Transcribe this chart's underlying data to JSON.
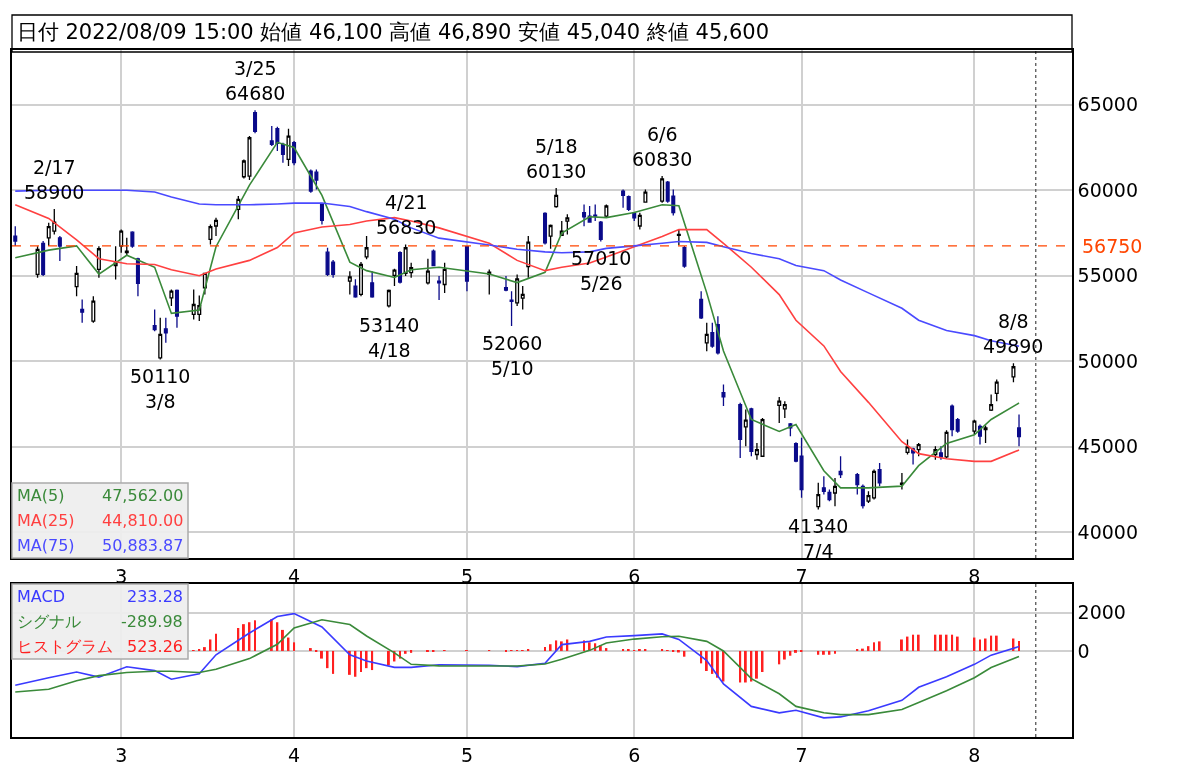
{
  "chart_data": [
    {
      "type": "candlestick",
      "title": "日付 2022/08/09 15:00 始値 46,100 高値 46,890 安値 45,040 終値 45,600",
      "x": [
        "2022-02-10",
        "2022-02-14",
        "2022-02-15",
        "2022-02-16",
        "2022-02-17",
        "2022-02-18",
        "2022-02-21",
        "2022-02-22",
        "2022-02-24",
        "2022-02-25",
        "2022-02-28",
        "2022-03-01",
        "2022-03-02",
        "2022-03-03",
        "2022-03-04",
        "2022-03-07",
        "2022-03-08",
        "2022-03-09",
        "2022-03-10",
        "2022-03-11",
        "2022-03-14",
        "2022-03-15",
        "2022-03-16",
        "2022-03-17",
        "2022-03-18",
        "2022-03-22",
        "2022-03-23",
        "2022-03-24",
        "2022-03-25",
        "2022-03-28",
        "2022-03-29",
        "2022-03-30",
        "2022-03-31",
        "2022-04-01",
        "2022-04-04",
        "2022-04-05",
        "2022-04-06",
        "2022-04-07",
        "2022-04-08",
        "2022-04-11",
        "2022-04-12",
        "2022-04-13",
        "2022-04-14",
        "2022-04-15",
        "2022-04-18",
        "2022-04-19",
        "2022-04-20",
        "2022-04-21",
        "2022-04-22",
        "2022-04-25",
        "2022-04-26",
        "2022-04-27",
        "2022-04-28",
        "2022-05-02",
        "2022-05-06",
        "2022-05-09",
        "2022-05-10",
        "2022-05-11",
        "2022-05-12",
        "2022-05-13",
        "2022-05-16",
        "2022-05-17",
        "2022-05-18",
        "2022-05-19",
        "2022-05-20",
        "2022-05-23",
        "2022-05-24",
        "2022-05-25",
        "2022-05-26",
        "2022-05-27",
        "2022-05-30",
        "2022-05-31",
        "2022-06-01",
        "2022-06-02",
        "2022-06-03",
        "2022-06-06",
        "2022-06-07",
        "2022-06-08",
        "2022-06-09",
        "2022-06-10",
        "2022-06-13",
        "2022-06-14",
        "2022-06-15",
        "2022-06-16",
        "2022-06-17",
        "2022-06-20",
        "2022-06-21",
        "2022-06-22",
        "2022-06-23",
        "2022-06-24",
        "2022-06-27",
        "2022-06-28",
        "2022-06-29",
        "2022-06-30",
        "2022-07-01",
        "2022-07-04",
        "2022-07-05",
        "2022-07-06",
        "2022-07-07",
        "2022-07-08",
        "2022-07-11",
        "2022-07-12",
        "2022-07-13",
        "2022-07-14",
        "2022-07-15",
        "2022-07-19",
        "2022-07-20",
        "2022-07-21",
        "2022-07-22",
        "2022-07-25",
        "2022-07-26",
        "2022-07-27",
        "2022-07-28",
        "2022-07-29",
        "2022-08-01",
        "2022-08-02",
        "2022-08-03",
        "2022-08-04",
        "2022-08-05",
        "2022-08-08",
        "2022-08-09"
      ],
      "ohlc": [
        [
          57320,
          57900,
          56740,
          57030
        ],
        [
          55080,
          56730,
          54880,
          56540
        ],
        [
          56890,
          57030,
          54980,
          55080
        ],
        [
          57220,
          58100,
          56740,
          57870
        ],
        [
          57610,
          58900,
          57420,
          58140
        ],
        [
          57220,
          57320,
          55860,
          56740
        ],
        [
          54360,
          55570,
          53810,
          55140
        ],
        [
          53030,
          53620,
          52250,
          52870
        ],
        [
          52350,
          53810,
          52250,
          53520
        ],
        [
          55370,
          56730,
          54880,
          56580
        ],
        [
          55600,
          56730,
          54780,
          55760
        ],
        [
          56740,
          57710,
          56350,
          57610
        ],
        [
          56350,
          57220,
          56150,
          56440
        ],
        [
          57550,
          57610,
          56640,
          56740
        ],
        [
          55990,
          56050,
          53810,
          54550
        ],
        [
          52090,
          53030,
          51760,
          51860
        ],
        [
          50200,
          52540,
          50110,
          51570
        ],
        [
          51900,
          52540,
          51080,
          51670
        ],
        [
          53710,
          54200,
          53230,
          54100
        ],
        [
          54140,
          54200,
          51960,
          52640
        ],
        [
          52740,
          54200,
          52450,
          53320
        ],
        [
          52740,
          53850,
          52350,
          53260
        ],
        [
          54300,
          55180,
          53910,
          55140
        ],
        [
          57130,
          58000,
          56830,
          57870
        ],
        [
          57910,
          58390,
          57320,
          58240
        ],
        [
          58880,
          59660,
          58300,
          59470
        ],
        [
          60790,
          61800,
          60680,
          61710
        ],
        [
          60830,
          63170,
          60600,
          63070
        ],
        [
          64540,
          64680,
          63340,
          63440
        ],
        [
          62880,
          63750,
          62590,
          62680
        ],
        [
          63600,
          63720,
          62290,
          62740
        ],
        [
          62680,
          62780,
          61610,
          62100
        ],
        [
          61810,
          63600,
          61420,
          63170
        ],
        [
          62780,
          62880,
          61460,
          61610
        ],
        [
          61120,
          61220,
          59860,
          59950
        ],
        [
          61060,
          61220,
          60050,
          60600
        ],
        [
          59170,
          59230,
          58000,
          58240
        ],
        [
          56380,
          56640,
          54980,
          55080
        ],
        [
          55800,
          55920,
          54880,
          55080
        ],
        [
          54690,
          55270,
          53910,
          54940
        ],
        [
          54400,
          54790,
          53710,
          53770
        ],
        [
          53910,
          55800,
          53810,
          55660
        ],
        [
          56110,
          57320,
          55960,
          56640
        ],
        [
          54590,
          55270,
          53710,
          53770
        ],
        [
          53240,
          54200,
          53140,
          54140
        ],
        [
          55020,
          55410,
          54400,
          55330
        ],
        [
          56350,
          56440,
          54550,
          54630
        ],
        [
          55140,
          56830,
          54980,
          56640
        ],
        [
          55180,
          55760,
          54880,
          55470
        ],
        [
          54590,
          55990,
          54490,
          55270
        ],
        [
          56440,
          56540,
          55560,
          55600
        ],
        [
          54690,
          54980,
          53590,
          54590
        ],
        [
          54490,
          55760,
          53990,
          55370
        ],
        [
          56700,
          56740,
          54100,
          54690
        ],
        [
          55080,
          55370,
          53910,
          55210
        ],
        [
          54300,
          54980,
          54100,
          54160
        ],
        [
          53580,
          54100,
          52060,
          53500
        ],
        [
          53420,
          55080,
          53230,
          54820
        ],
        [
          53690,
          54400,
          53030,
          53910
        ],
        [
          55540,
          57320,
          54880,
          56970
        ],
        [
          58650,
          58720,
          56830,
          56930
        ],
        [
          57320,
          58000,
          56580,
          57940
        ],
        [
          59040,
          60130,
          58980,
          59700
        ],
        [
          57370,
          58200,
          57320,
          57610
        ],
        [
          58200,
          58590,
          57420,
          58390
        ],
        [
          58690,
          59170,
          57900,
          58450
        ],
        [
          58490,
          59080,
          58100,
          58140
        ],
        [
          58550,
          59170,
          58200,
          58490
        ],
        [
          58140,
          58200,
          57010,
          57130
        ],
        [
          58490,
          59170,
          58390,
          59080
        ],
        [
          59950,
          60050,
          58980,
          59700
        ],
        [
          59620,
          59700,
          58780,
          58880
        ],
        [
          58650,
          58720,
          58200,
          58390
        ],
        [
          57910,
          58690,
          57710,
          58530
        ],
        [
          59310,
          60050,
          59270,
          59890
        ],
        [
          59370,
          60830,
          59270,
          60670
        ],
        [
          60480,
          60540,
          59270,
          59370
        ],
        [
          59660,
          60050,
          58530,
          58690
        ],
        [
          57370,
          57710,
          56780,
          57420
        ],
        [
          56640,
          56740,
          55470,
          55570
        ],
        [
          53620,
          54100,
          52480,
          52540
        ],
        [
          51080,
          52250,
          50590,
          51570
        ],
        [
          51670,
          52250,
          50790,
          50890
        ],
        [
          52150,
          52640,
          50400,
          50500
        ],
        [
          48160,
          48640,
          47380,
          47920
        ],
        [
          47470,
          47570,
          44350,
          45430
        ],
        [
          46170,
          47180,
          45040,
          46560
        ],
        [
          47220,
          47280,
          44450,
          44740
        ],
        [
          44550,
          45230,
          44250,
          44840
        ],
        [
          44450,
          46690,
          44410,
          46590
        ],
        [
          47420,
          47920,
          46400,
          47670
        ],
        [
          47220,
          47670,
          46690,
          47470
        ],
        [
          46340,
          46400,
          45620,
          46110
        ],
        [
          45190,
          45270,
          44100,
          44160
        ],
        [
          44450,
          45530,
          42020,
          42500
        ],
        [
          41500,
          42900,
          41340,
          42210
        ],
        [
          42600,
          43280,
          42210,
          42400
        ],
        [
          42340,
          42500,
          41820,
          41920
        ],
        [
          42300,
          43180,
          41530,
          42690
        ],
        [
          43570,
          44450,
          43180,
          43380
        ],
        [
          43380,
          43470,
          42210,
          42790
        ],
        [
          42690,
          42790,
          41400,
          41560
        ],
        [
          41820,
          42400,
          41720,
          42150
        ],
        [
          42010,
          43670,
          41920,
          43570
        ],
        [
          43670,
          44060,
          42690,
          42890
        ],
        [
          42810,
          43470,
          42500,
          42870
        ],
        [
          44680,
          45430,
          44550,
          45000
        ],
        [
          44880,
          44940,
          43970,
          44650
        ],
        [
          44840,
          45230,
          44450,
          45130
        ],
        [
          44550,
          45040,
          44250,
          44840
        ],
        [
          44650,
          45040,
          44250,
          44410
        ],
        [
          44410,
          45970,
          44350,
          45850
        ],
        [
          47380,
          47470,
          45620,
          46010
        ],
        [
          46590,
          46690,
          45820,
          45920
        ],
        [
          45920,
          46590,
          45720,
          46500
        ],
        [
          46200,
          46300,
          45130,
          45620
        ],
        [
          46010,
          46250,
          45230,
          46110
        ],
        [
          47140,
          48060,
          47090,
          47470
        ],
        [
          48120,
          48930,
          47670,
          48780
        ],
        [
          49090,
          49890,
          48780,
          49680
        ],
        [
          46100,
          46890,
          45040,
          45600
        ]
      ],
      "series": [
        {
          "name": "MA(5)",
          "type": "line",
          "color": "#3a8a3a",
          "x": [
            "2022-02-10",
            "2022-02-16",
            "2022-02-21",
            "2022-02-25",
            "2022-03-02",
            "2022-03-07",
            "2022-03-10",
            "2022-03-15",
            "2022-03-18",
            "2022-03-24",
            "2022-03-29",
            "2022-04-01",
            "2022-04-06",
            "2022-04-11",
            "2022-04-14",
            "2022-04-19",
            "2022-04-22",
            "2022-04-27",
            "2022-05-06",
            "2022-05-11",
            "2022-05-16",
            "2022-05-19",
            "2022-05-24",
            "2022-05-27",
            "2022-06-01",
            "2022-06-06",
            "2022-06-09",
            "2022-06-14",
            "2022-06-17",
            "2022-06-22",
            "2022-06-27",
            "2022-06-30",
            "2022-07-05",
            "2022-07-08",
            "2022-07-13",
            "2022-07-19",
            "2022-07-22",
            "2022-07-27",
            "2022-08-01",
            "2022-08-04",
            "2022-08-09"
          ],
          "values": [
            56050,
            56500,
            56750,
            55100,
            56200,
            55500,
            52800,
            53000,
            56700,
            60300,
            62800,
            62500,
            59700,
            55800,
            55300,
            54900,
            55350,
            55500,
            55100,
            54600,
            55200,
            57500,
            58450,
            58400,
            58700,
            59150,
            59100,
            54000,
            50600,
            46600,
            45900,
            46300,
            43600,
            42600,
            42600,
            42700,
            43900,
            45200,
            45700,
            46600,
            47560
          ]
        },
        {
          "name": "MA(25)",
          "type": "line",
          "color": "#ff4040",
          "x": [
            "2022-02-10",
            "2022-02-16",
            "2022-02-21",
            "2022-02-25",
            "2022-03-02",
            "2022-03-07",
            "2022-03-10",
            "2022-03-15",
            "2022-03-18",
            "2022-03-24",
            "2022-03-29",
            "2022-04-01",
            "2022-04-06",
            "2022-04-11",
            "2022-04-14",
            "2022-04-19",
            "2022-04-22",
            "2022-04-27",
            "2022-05-06",
            "2022-05-11",
            "2022-05-16",
            "2022-05-19",
            "2022-05-24",
            "2022-05-27",
            "2022-06-01",
            "2022-06-06",
            "2022-06-09",
            "2022-06-14",
            "2022-06-17",
            "2022-06-22",
            "2022-06-27",
            "2022-06-30",
            "2022-07-05",
            "2022-07-08",
            "2022-07-13",
            "2022-07-19",
            "2022-07-22",
            "2022-07-27",
            "2022-08-01",
            "2022-08-04",
            "2022-08-09"
          ],
          "values": [
            59150,
            58350,
            57100,
            56000,
            55700,
            55660,
            55350,
            55000,
            55400,
            55900,
            56650,
            57500,
            57850,
            58000,
            58200,
            58400,
            58200,
            57800,
            56900,
            55900,
            55300,
            55500,
            55750,
            56100,
            56700,
            57300,
            57700,
            57700,
            56900,
            55500,
            53900,
            52400,
            50900,
            49400,
            47600,
            45300,
            44600,
            44300,
            44150,
            44150,
            44810
          ]
        },
        {
          "name": "MA(75)",
          "type": "line",
          "color": "#4a4aff",
          "x": [
            "2022-02-10",
            "2022-02-16",
            "2022-02-21",
            "2022-02-25",
            "2022-03-02",
            "2022-03-07",
            "2022-03-10",
            "2022-03-15",
            "2022-03-18",
            "2022-03-24",
            "2022-03-29",
            "2022-04-01",
            "2022-04-06",
            "2022-04-11",
            "2022-04-14",
            "2022-04-19",
            "2022-04-22",
            "2022-04-27",
            "2022-05-06",
            "2022-05-11",
            "2022-05-16",
            "2022-05-19",
            "2022-05-24",
            "2022-05-27",
            "2022-06-01",
            "2022-06-06",
            "2022-06-09",
            "2022-06-14",
            "2022-06-17",
            "2022-06-22",
            "2022-06-27",
            "2022-06-30",
            "2022-07-05",
            "2022-07-08",
            "2022-07-13",
            "2022-07-19",
            "2022-07-22",
            "2022-07-27",
            "2022-08-01",
            "2022-08-04",
            "2022-08-09"
          ],
          "values": [
            59950,
            60000,
            60000,
            60000,
            60000,
            59900,
            59600,
            59200,
            59150,
            59150,
            59200,
            59250,
            59250,
            59050,
            58750,
            58300,
            57800,
            57200,
            56800,
            56550,
            56400,
            56350,
            56400,
            56600,
            56750,
            56900,
            57000,
            56950,
            56700,
            56300,
            56000,
            55600,
            55300,
            54750,
            54000,
            53100,
            52400,
            51800,
            51500,
            51200,
            50880
          ]
        }
      ],
      "xlim": [
        "2022-02-09T10:00",
        "2022-08-18T12:00"
      ],
      "xticks": [
        {
          "value": "2022-03-01",
          "label": "3"
        },
        {
          "value": "2022-04-01",
          "label": "4"
        },
        {
          "value": "2022-05-02",
          "label": "5"
        },
        {
          "value": "2022-06-01",
          "label": "6"
        },
        {
          "value": "2022-07-01",
          "label": "7"
        },
        {
          "value": "2022-08-01",
          "label": "8"
        }
      ],
      "ylim": [
        38500,
        68200
      ],
      "yticks": [
        40000,
        45000,
        50000,
        55000,
        60000,
        65000
      ],
      "grid": true,
      "ref_lines": [
        {
          "axis": "y",
          "value": 56750,
          "label": "56750",
          "color": "#ff4500",
          "line_style": "dashed"
        },
        {
          "axis": "x",
          "value": "2022-08-12",
          "color": "#555555",
          "line_style": "dotted"
        }
      ],
      "annotations": [
        {
          "text": "2/17\n58900",
          "x": "2022-02-17",
          "y": 58900
        },
        {
          "text": "50110\n3/8",
          "x": "2022-03-08",
          "y": 50110
        },
        {
          "text": "3/25\n64680",
          "x": "2022-03-25",
          "y": 64680
        },
        {
          "text": "53140\n4/18",
          "x": "2022-04-18",
          "y": 53140
        },
        {
          "text": "4/21\n56830",
          "x": "2022-04-21",
          "y": 56830
        },
        {
          "text": "52060\n5/10",
          "x": "2022-05-10",
          "y": 52060
        },
        {
          "text": "5/18\n60130",
          "x": "2022-05-18",
          "y": 60130
        },
        {
          "text": "57010\n5/26",
          "x": "2022-05-26",
          "y": 57010
        },
        {
          "text": "6/6\n60830",
          "x": "2022-06-06",
          "y": 60830
        },
        {
          "text": "41340\n7/4",
          "x": "2022-07-04",
          "y": 41340
        },
        {
          "text": "8/8\n49890",
          "x": "2022-08-08",
          "y": 49890
        },
        "47,562.00",
        "44,810.00",
        "50,883.87"
      ]
    },
    {
      "type": "line",
      "x": [
        "2022-03-14",
        "2022-03-15",
        "2022-03-16",
        "2022-03-17",
        "2022-03-18",
        "2022-03-22",
        "2022-03-23",
        "2022-03-24",
        "2022-03-25",
        "2022-03-28",
        "2022-03-29",
        "2022-03-30",
        "2022-03-31",
        "2022-04-01",
        "2022-04-04",
        "2022-04-05",
        "2022-04-06",
        "2022-04-07",
        "2022-04-08",
        "2022-04-11",
        "2022-04-12",
        "2022-04-13",
        "2022-04-14",
        "2022-04-15",
        "2022-04-18",
        "2022-04-19",
        "2022-04-20",
        "2022-04-21",
        "2022-04-22",
        "2022-04-25",
        "2022-04-26",
        "2022-04-27",
        "2022-04-28",
        "2022-05-02",
        "2022-05-06",
        "2022-05-09",
        "2022-05-10",
        "2022-05-11",
        "2022-05-12",
        "2022-05-13",
        "2022-05-16",
        "2022-05-17",
        "2022-05-18",
        "2022-05-19",
        "2022-05-20",
        "2022-05-23",
        "2022-05-24",
        "2022-05-25",
        "2022-05-26",
        "2022-05-27",
        "2022-05-30",
        "2022-05-31",
        "2022-06-01",
        "2022-06-02",
        "2022-06-03",
        "2022-06-06",
        "2022-06-07",
        "2022-06-08",
        "2022-06-09",
        "2022-06-10",
        "2022-06-13",
        "2022-06-14",
        "2022-06-15",
        "2022-06-16",
        "2022-06-17",
        "2022-06-20",
        "2022-06-21",
        "2022-06-22",
        "2022-06-23",
        "2022-06-24",
        "2022-06-27",
        "2022-06-28",
        "2022-06-29",
        "2022-06-30",
        "2022-07-01",
        "2022-07-04",
        "2022-07-05",
        "2022-07-06",
        "2022-07-07",
        "2022-07-08",
        "2022-07-11",
        "2022-07-12",
        "2022-07-13",
        "2022-07-14",
        "2022-07-15",
        "2022-07-19",
        "2022-07-20",
        "2022-07-21",
        "2022-07-22",
        "2022-07-25",
        "2022-07-26",
        "2022-07-27",
        "2022-07-28",
        "2022-07-29",
        "2022-08-01",
        "2022-08-02",
        "2022-08-03",
        "2022-08-04",
        "2022-08-05",
        "2022-08-08",
        "2022-08-09"
      ],
      "series": [
        {
          "name": "MACD",
          "type": "line",
          "color": "#3a3aff",
          "x": [
            "2022-02-10",
            "2022-02-16",
            "2022-02-21",
            "2022-02-25",
            "2022-03-02",
            "2022-03-07",
            "2022-03-10",
            "2022-03-15",
            "2022-03-18",
            "2022-03-24",
            "2022-03-29",
            "2022-04-01",
            "2022-04-06",
            "2022-04-11",
            "2022-04-14",
            "2022-04-19",
            "2022-04-22",
            "2022-04-27",
            "2022-05-06",
            "2022-05-11",
            "2022-05-16",
            "2022-05-19",
            "2022-05-24",
            "2022-05-27",
            "2022-06-01",
            "2022-06-06",
            "2022-06-09",
            "2022-06-14",
            "2022-06-17",
            "2022-06-22",
            "2022-06-27",
            "2022-06-30",
            "2022-07-05",
            "2022-07-08",
            "2022-07-13",
            "2022-07-19",
            "2022-07-22",
            "2022-07-27",
            "2022-08-01",
            "2022-08-04",
            "2022-08-09"
          ],
          "values": [
            -1790,
            -1400,
            -1100,
            -1370,
            -830,
            -1030,
            -1480,
            -1200,
            -200,
            940,
            1800,
            1950,
            1250,
            -200,
            -530,
            -860,
            -860,
            -720,
            -750,
            -820,
            -640,
            330,
            500,
            730,
            800,
            890,
            600,
            -500,
            -1720,
            -2900,
            -3240,
            -3100,
            -3500,
            -3450,
            -3130,
            -2580,
            -1900,
            -1350,
            -700,
            -220,
            230
          ]
        },
        {
          "name": "シグナル",
          "type": "line",
          "color": "#3a8a3a",
          "x": [
            "2022-02-10",
            "2022-02-16",
            "2022-02-21",
            "2022-02-25",
            "2022-03-02",
            "2022-03-07",
            "2022-03-10",
            "2022-03-15",
            "2022-03-18",
            "2022-03-24",
            "2022-03-29",
            "2022-04-01",
            "2022-04-06",
            "2022-04-11",
            "2022-04-14",
            "2022-04-19",
            "2022-04-22",
            "2022-04-27",
            "2022-05-06",
            "2022-05-11",
            "2022-05-16",
            "2022-05-19",
            "2022-05-24",
            "2022-05-27",
            "2022-06-01",
            "2022-06-06",
            "2022-06-09",
            "2022-06-14",
            "2022-06-17",
            "2022-06-22",
            "2022-06-27",
            "2022-06-30",
            "2022-07-05",
            "2022-07-08",
            "2022-07-13",
            "2022-07-19",
            "2022-07-22",
            "2022-07-27",
            "2022-08-01",
            "2022-08-04",
            "2022-08-09"
          ],
          "values": [
            -2150,
            -2000,
            -1560,
            -1290,
            -1130,
            -1060,
            -1060,
            -1130,
            -960,
            -400,
            350,
            1200,
            1630,
            1380,
            780,
            -100,
            -700,
            -780,
            -790,
            -790,
            -680,
            -430,
            30,
            420,
            620,
            740,
            770,
            500,
            0,
            -1450,
            -2240,
            -2900,
            -3230,
            -3330,
            -3330,
            -3060,
            -2700,
            -2080,
            -1400,
            -870,
            -290
          ]
        },
        {
          "name": "ヒストグラム",
          "type": "bar",
          "color": "#ff2020",
          "values": [
            30,
            100,
            200,
            600,
            900,
            1200,
            1400,
            1500,
            1600,
            1650,
            1500,
            1100,
            700,
            450,
            150,
            -50,
            -400,
            -900,
            -1200,
            -1250,
            -1350,
            -1100,
            -900,
            -1000,
            -750,
            -550,
            -400,
            -150,
            -100,
            -30,
            -20,
            0,
            30,
            30,
            20,
            -20,
            30,
            10,
            30,
            100,
            200,
            350,
            550,
            500,
            600,
            550,
            450,
            400,
            300,
            150,
            80,
            50,
            40,
            50,
            100,
            60,
            20,
            -20,
            -80,
            -300,
            -650,
            -1050,
            -1200,
            -1400,
            -1600,
            -1650,
            -1650,
            -1600,
            -1450,
            -1100,
            -700,
            -450,
            -250,
            -100,
            -50,
            -200,
            -200,
            -200,
            -150,
            0,
            50,
            120,
            250,
            450,
            500,
            600,
            750,
            850,
            850,
            850,
            850,
            850,
            850,
            750,
            700,
            600,
            650,
            800,
            800,
            650,
            520
          ]
        }
      ],
      "xlim": [
        "2022-02-09T10:00",
        "2022-08-18T12:00"
      ],
      "xticks": [
        {
          "value": "2022-03-01",
          "label": "3"
        },
        {
          "value": "2022-04-01",
          "label": "4"
        },
        {
          "value": "2022-05-02",
          "label": "5"
        },
        {
          "value": "2022-06-01",
          "label": "6"
        },
        {
          "value": "2022-07-01",
          "label": "7"
        },
        {
          "value": "2022-08-01",
          "label": "8"
        }
      ],
      "ylim": [
        -4500,
        3500
      ],
      "yticks": [
        0,
        2000
      ],
      "grid": true,
      "ref_lines": [
        {
          "axis": "x",
          "value": "2022-08-12",
          "color": "#555555",
          "line_style": "dotted"
        }
      ],
      "annotations": [
        "233.28",
        "-289.98",
        "523.26"
      ]
    }
  ]
}
